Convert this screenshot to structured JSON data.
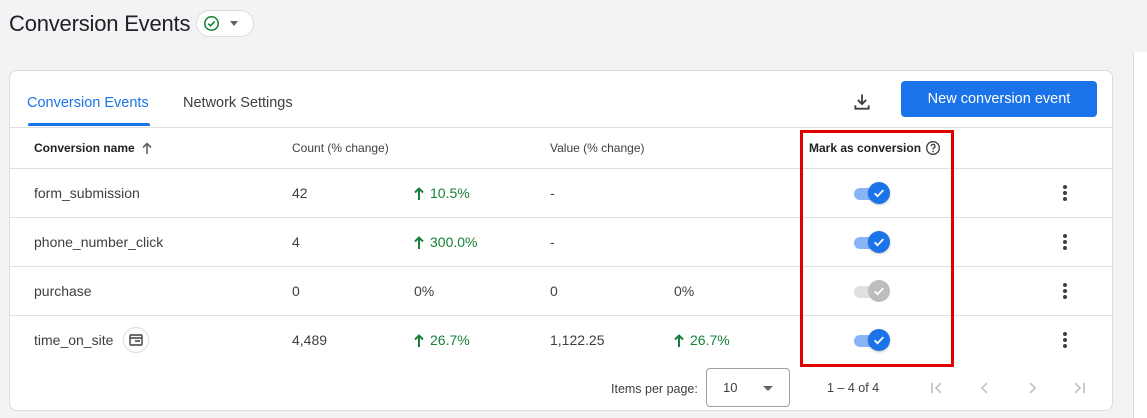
{
  "page": {
    "title": "Conversion Events",
    "status_icon": "check-circle-icon"
  },
  "tabs": [
    {
      "label": "Conversion Events",
      "active": true
    },
    {
      "label": "Network Settings",
      "active": false
    }
  ],
  "toolbar": {
    "download_icon": "download-icon",
    "new_button_label": "New conversion event"
  },
  "table": {
    "headers": {
      "name": "Conversion name",
      "count": "Count (% change)",
      "value": "Value (% change)",
      "mark": "Mark as conversion"
    },
    "sort": {
      "column": "name",
      "direction": "ascending"
    },
    "rows": [
      {
        "name": "form_submission",
        "count": "42",
        "count_change": "10.5%",
        "count_trend": "up",
        "value": "-",
        "value_change": "",
        "value_trend": "",
        "marked": true,
        "has_icon": false
      },
      {
        "name": "phone_number_click",
        "count": "4",
        "count_change": "300.0%",
        "count_trend": "up",
        "value": "-",
        "value_change": "",
        "value_trend": "",
        "marked": true,
        "has_icon": false
      },
      {
        "name": "purchase",
        "count": "0",
        "count_change": "0%",
        "count_trend": "none",
        "value": "0",
        "value_change": "0%",
        "value_trend": "none",
        "marked": false,
        "has_icon": false
      },
      {
        "name": "time_on_site",
        "count": "4,489",
        "count_change": "26.7%",
        "count_trend": "up",
        "value": "1,122.25",
        "value_change": "26.7%",
        "value_trend": "up",
        "marked": true,
        "has_icon": true
      }
    ]
  },
  "pagination": {
    "items_per_page_label": "Items per page:",
    "items_per_page": "10",
    "range": "1 – 4 of 4"
  },
  "colors": {
    "accent": "#1a73e8",
    "positive": "#188038",
    "highlight": "#e00000"
  }
}
